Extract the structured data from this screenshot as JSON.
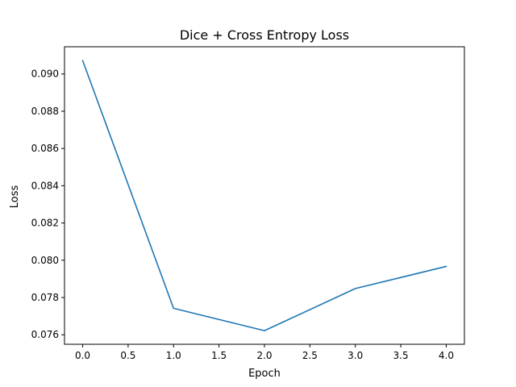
{
  "chart_data": {
    "type": "line",
    "title": "Dice + Cross Entropy Loss",
    "xlabel": "Epoch",
    "ylabel": "Loss",
    "x": [
      0,
      1,
      2,
      3,
      4
    ],
    "series": [
      {
        "values": [
          0.09072,
          0.07742,
          0.07622,
          0.07848,
          0.07967
        ],
        "color": "#1f77b4"
      }
    ],
    "xlim": [
      -0.2,
      4.2
    ],
    "ylim": [
      0.07549,
      0.09146
    ],
    "xticks": [
      0.0,
      0.5,
      1.0,
      1.5,
      2.0,
      2.5,
      3.0,
      3.5,
      4.0
    ],
    "xtick_labels": [
      "0.0",
      "0.5",
      "1.0",
      "1.5",
      "2.0",
      "2.5",
      "3.0",
      "3.5",
      "4.0"
    ],
    "yticks": [
      0.076,
      0.078,
      0.08,
      0.082,
      0.084,
      0.086,
      0.088,
      0.09
    ],
    "ytick_labels": [
      "0.076",
      "0.078",
      "0.080",
      "0.082",
      "0.084",
      "0.086",
      "0.088",
      "0.090"
    ],
    "grid": false,
    "legend": false
  }
}
